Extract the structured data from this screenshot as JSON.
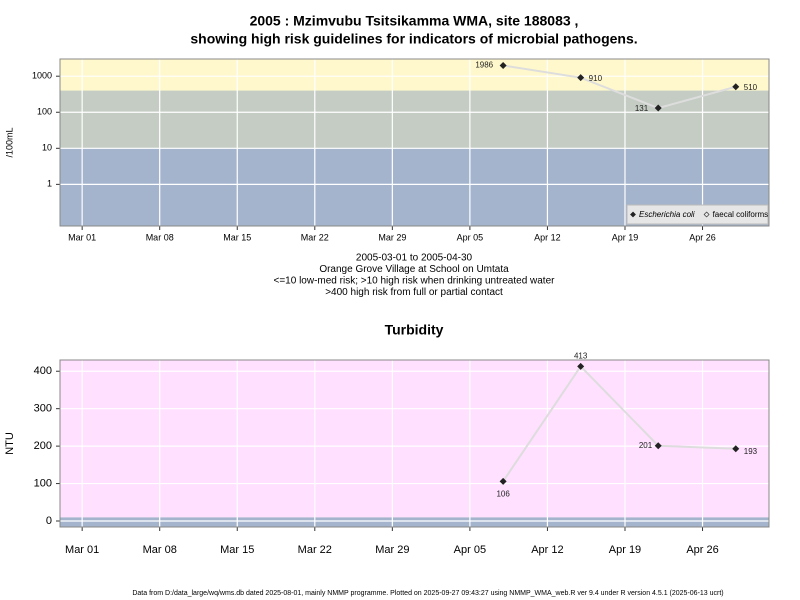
{
  "chart_data": [
    {
      "type": "line",
      "title": [
        "2005 : Mzimvubu Tsitsikamma WMA, site 188083 ,",
        "showing high risk guidelines for indicators of microbial pathogens."
      ],
      "y_label": "/100mL",
      "notes": [
        "2005-03-01 to 2005-04-30",
        "Orange Grove Village at School on Umtata",
        "<=10 low-med risk; >10 high risk when drinking untreated water",
        ">400 high risk from full or partial contact"
      ],
      "x": [
        "2005-04-08",
        "2005-04-15",
        "2005-04-22",
        "2005-04-29"
      ],
      "series": [
        {
          "name": "Escherichia coli",
          "color": "#222222",
          "values": [
            1986,
            910,
            131,
            510
          ]
        },
        {
          "name": "faecal coliforms",
          "color": "#222222",
          "values": [
            null,
            null,
            null,
            null
          ]
        }
      ],
      "xlim": [
        "2005-02-27",
        "2005-05-02"
      ],
      "xticks": [
        {
          "value": "2005-03-01",
          "label": "Mar 01"
        },
        {
          "value": "2005-03-08",
          "label": "Mar 08"
        },
        {
          "value": "2005-03-15",
          "label": "Mar 15"
        },
        {
          "value": "2005-03-22",
          "label": "Mar 22"
        },
        {
          "value": "2005-03-29",
          "label": "Mar 29"
        },
        {
          "value": "2005-04-05",
          "label": "Apr 05"
        },
        {
          "value": "2005-04-12",
          "label": "Apr 12"
        },
        {
          "value": "2005-04-19",
          "label": "Apr 19"
        },
        {
          "value": "2005-04-26",
          "label": "Apr 26"
        }
      ],
      "ylim": [
        0.07,
        3000
      ],
      "yticks": [
        1,
        10,
        100,
        1000
      ],
      "log_y": true,
      "grid": true,
      "band_edges": [
        10,
        400
      ],
      "band_colors": [
        "#a4b4cd",
        "#c4ccc4",
        "#fff8cc"
      ],
      "legend": "bottom right"
    },
    {
      "type": "line",
      "title": [
        "Turbidity"
      ],
      "y_label": "NTU",
      "x": [
        "2005-04-08",
        "2005-04-15",
        "2005-04-22",
        "2005-04-29"
      ],
      "series": [
        {
          "color": "#222222",
          "values": [
            106,
            413,
            201,
            193
          ]
        }
      ],
      "xlim": [
        "2005-02-27",
        "2005-05-02"
      ],
      "xticks": [
        {
          "value": "2005-03-01",
          "label": "Mar 01"
        },
        {
          "value": "2005-03-08",
          "label": "Mar 08"
        },
        {
          "value": "2005-03-15",
          "label": "Mar 15"
        },
        {
          "value": "2005-03-22",
          "label": "Mar 22"
        },
        {
          "value": "2005-03-29",
          "label": "Mar 29"
        },
        {
          "value": "2005-04-05",
          "label": "Apr 05"
        },
        {
          "value": "2005-04-12",
          "label": "Apr 12"
        },
        {
          "value": "2005-04-19",
          "label": "Apr 19"
        },
        {
          "value": "2005-04-26",
          "label": "Apr 26"
        }
      ],
      "ylim": [
        -16,
        430
      ],
      "yticks": [
        0,
        100,
        200,
        300,
        400
      ],
      "log_y": false,
      "grid": true,
      "band_edges": [
        10
      ],
      "band_colors": [
        "#a4b4cd",
        "#ffe0ff"
      ]
    }
  ],
  "footer": "Data from D:/data_large/wq/wms.db dated 2025-08-01, mainly NMMP programme. Plotted on 2025-09-27 09:43:27 using NMMP_WMA_web.R ver 9.4 under R version 4.5.1 (2025-06-13 ucrt)"
}
